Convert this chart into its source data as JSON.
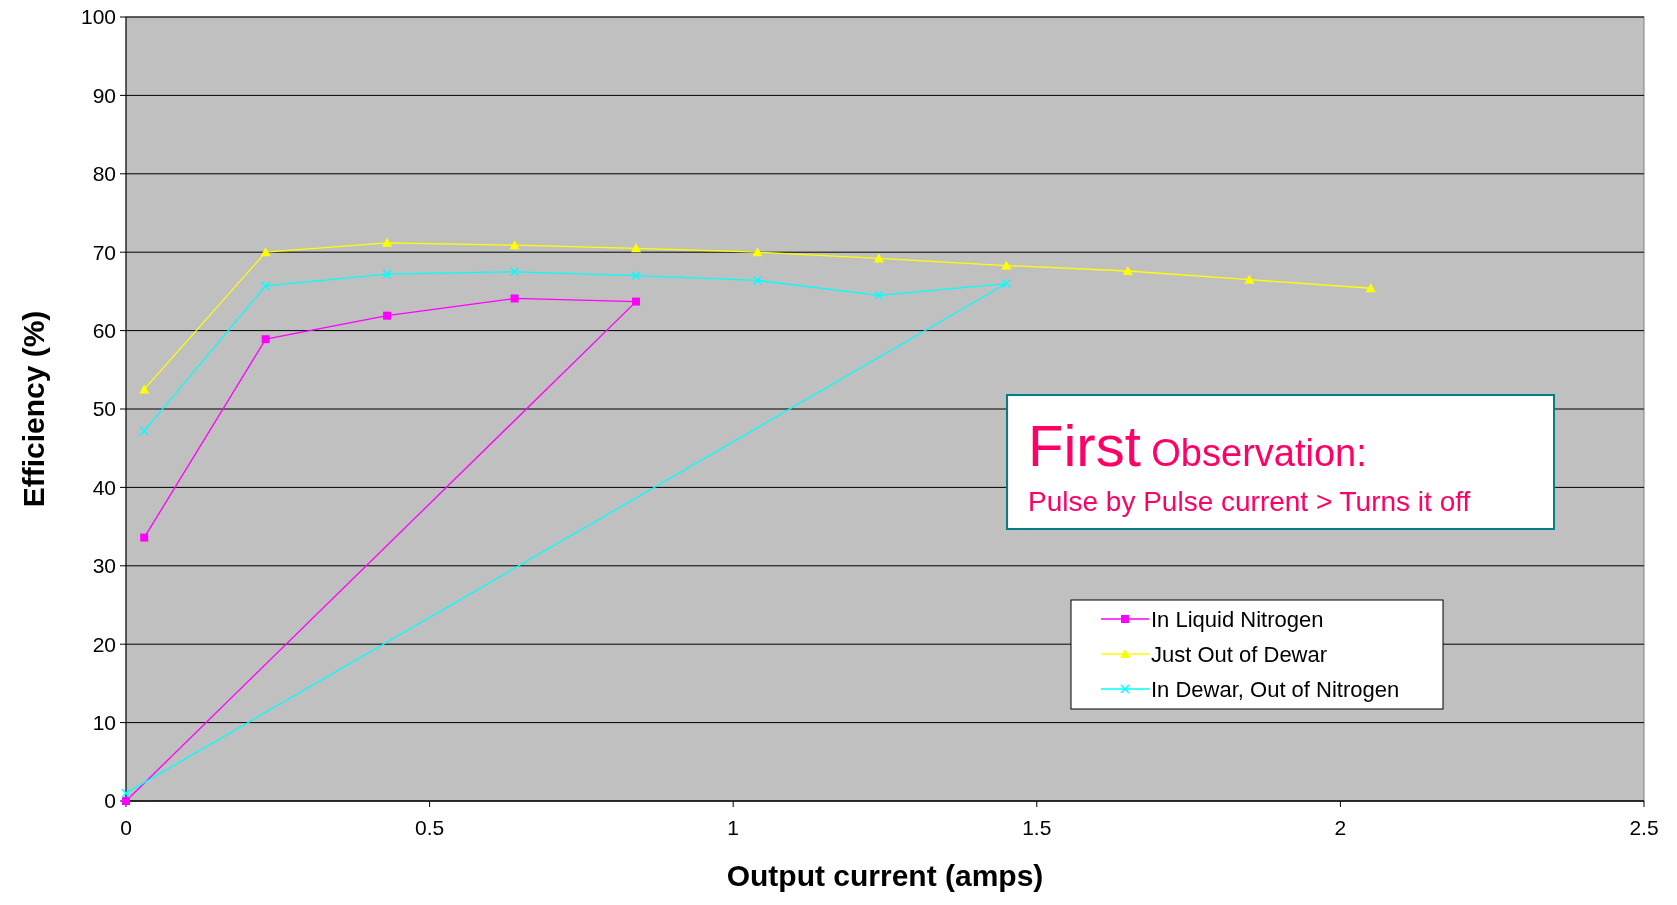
{
  "chart_data": {
    "type": "line",
    "xlabel": "Output current (amps)",
    "ylabel": "Efficiency (%)",
    "xlim": [
      0,
      2.5
    ],
    "xticks": [
      0,
      0.5,
      1,
      1.5,
      2,
      2.5
    ],
    "ylim": [
      0,
      100
    ],
    "yticks": [
      0,
      10,
      20,
      30,
      40,
      50,
      60,
      70,
      80,
      90,
      100
    ],
    "grid": "y",
    "legend": "bottom right",
    "annotations": [
      "First Observation:",
      "Pulse by Pulse current > Turns it off"
    ],
    "series": [
      {
        "name": "In Liquid Nitrogen",
        "color": "#ff00ff",
        "marker": "square",
        "x": [
          0.03,
          0.23,
          0.43,
          0.64,
          0.84,
          0
        ],
        "values": [
          33.6,
          58.9,
          61.9,
          64.1,
          63.7,
          0
        ]
      },
      {
        "name": "Just Out of Dewar",
        "color": "#ffff00",
        "marker": "triangle",
        "x": [
          0.03,
          0.23,
          0.43,
          0.64,
          0.84,
          1.04,
          1.24,
          1.45,
          1.65,
          1.85,
          2.05
        ],
        "values": [
          52.5,
          70,
          71.2,
          70.9,
          70.5,
          70,
          69.2,
          68.3,
          67.6,
          66.5,
          65.4
        ]
      },
      {
        "name": "In Dewar, Out of Nitrogen",
        "color": "#00ffff",
        "marker": "cross",
        "x": [
          0.03,
          0.23,
          0.43,
          0.64,
          0.84,
          1.04,
          1.24,
          1.45,
          0
        ],
        "values": [
          47.2,
          65.7,
          67.2,
          67.5,
          67,
          66.4,
          64.5,
          66,
          1
        ]
      }
    ]
  }
}
